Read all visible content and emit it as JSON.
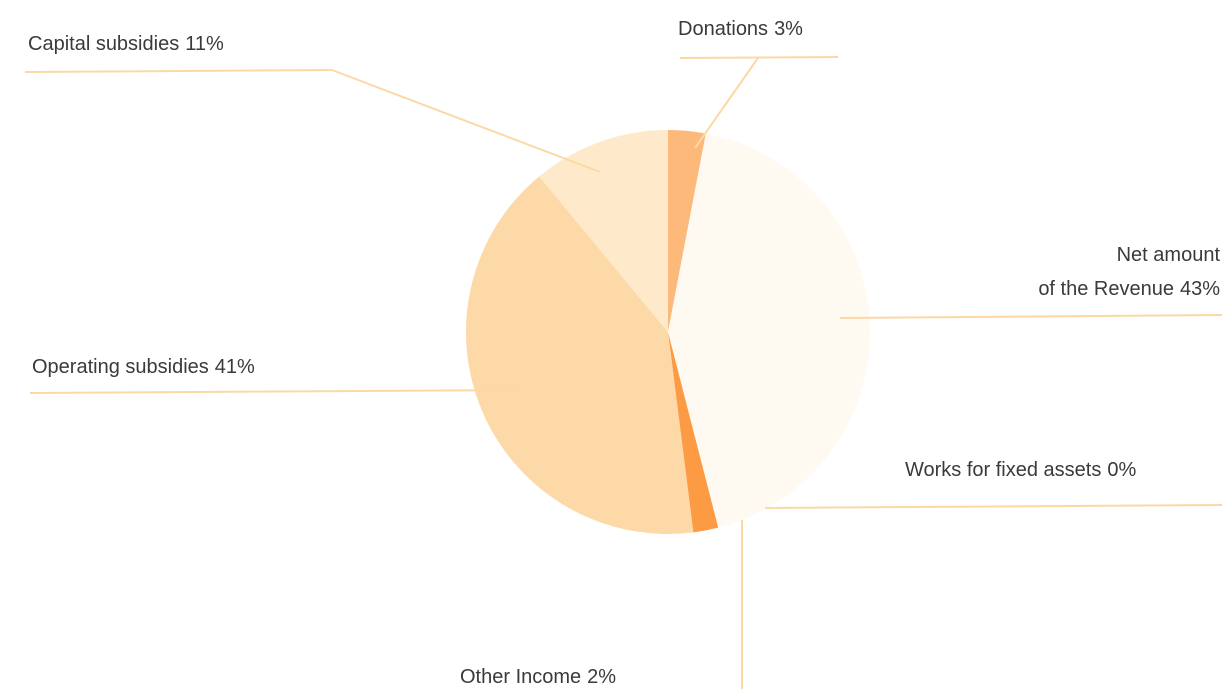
{
  "chart_data": {
    "type": "pie",
    "categories": [
      "Donations",
      "Net amount\nof the Revenue",
      "Works for fixed assets",
      "Other Income",
      "Operating subsidies",
      "Capital subsidies"
    ],
    "values": [
      3,
      43,
      0,
      2,
      41,
      11
    ],
    "value_labels": [
      "3%",
      "43%",
      "0%",
      "2%",
      "41%",
      "11%"
    ],
    "colors": [
      "#fdb97a",
      "#fffaf1",
      "#fd9c48",
      "#fd9b45",
      "#fdd9a8",
      "#feeacb"
    ]
  }
}
